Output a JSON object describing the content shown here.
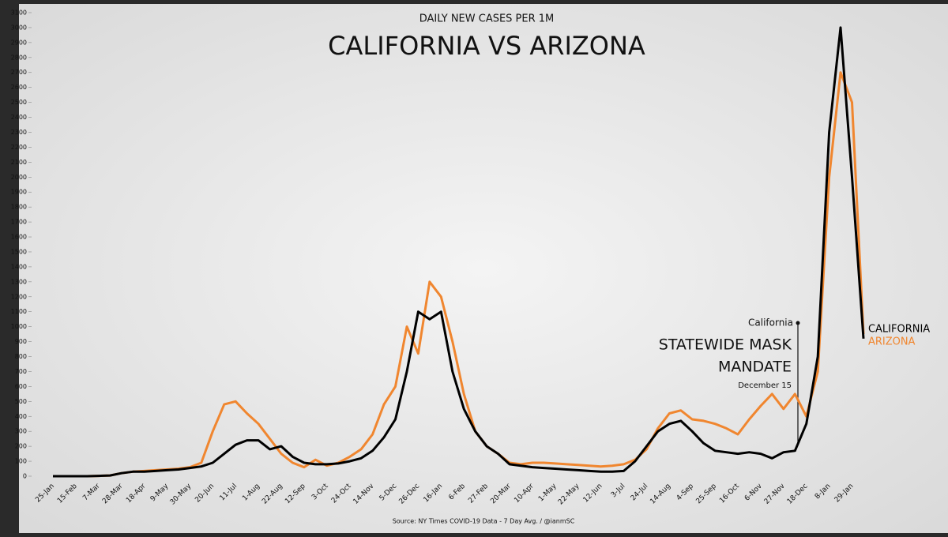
{
  "chart_data": {
    "type": "line",
    "subtitle": "DAILY NEW CASES PER 1M",
    "title": "CALIFORNIA VS ARIZONA",
    "source": "Source: NY Times COVID-19 Data - 7 Day Avg. / @ianmSC",
    "annotations": [
      "California",
      "STATEWIDE MASK",
      "MANDATE",
      "December 15"
    ],
    "categories": [
      "25-Jan",
      null,
      "15-Feb",
      null,
      "7-Mar",
      null,
      "28-Mar",
      null,
      "18-Apr",
      null,
      "9-May",
      null,
      "30-May",
      null,
      "20-Jun",
      null,
      "11-Jul",
      null,
      "1-Aug",
      null,
      "22-Aug",
      null,
      "12-Sep",
      null,
      "3-Oct",
      null,
      "24-Oct",
      null,
      "14-Nov",
      null,
      "5-Dec",
      null,
      "26-Dec",
      null,
      "16-Jan",
      null,
      "6-Feb",
      null,
      "27-Feb",
      null,
      "20-Mar",
      null,
      "10-Apr",
      null,
      "1-May",
      null,
      "22-May",
      null,
      "12-Jun",
      null,
      "3-Jul",
      null,
      "24-Jul",
      null,
      "14-Aug",
      null,
      "4-Sep",
      null,
      "25-Sep",
      null,
      "16-Oct",
      null,
      "6-Nov",
      null,
      "27-Nov",
      null,
      "18-Dec",
      null,
      "8-Jan",
      null,
      "29-Jan",
      null
    ],
    "series": [
      {
        "name": "CALIFORNIA",
        "color": "#000000",
        "values": [
          0,
          0,
          0,
          0,
          2,
          5,
          20,
          30,
          30,
          35,
          40,
          45,
          55,
          65,
          90,
          150,
          210,
          240,
          240,
          180,
          200,
          130,
          90,
          80,
          80,
          85,
          100,
          120,
          170,
          260,
          380,
          700,
          1100,
          1050,
          1100,
          700,
          450,
          300,
          200,
          150,
          80,
          70,
          60,
          55,
          50,
          45,
          40,
          35,
          30,
          30,
          35,
          100,
          200,
          300,
          350,
          370,
          300,
          220,
          170,
          160,
          150,
          160,
          150,
          120,
          160,
          170,
          350,
          800,
          2300,
          3000,
          2000,
          920
        ]
      },
      {
        "name": "ARIZONA",
        "color": "#f0862f",
        "values": [
          0,
          0,
          0,
          0,
          2,
          5,
          20,
          30,
          35,
          40,
          45,
          50,
          60,
          90,
          300,
          480,
          500,
          420,
          350,
          250,
          150,
          90,
          60,
          110,
          70,
          90,
          130,
          180,
          280,
          480,
          600,
          1000,
          820,
          1300,
          1200,
          900,
          550,
          300,
          200,
          150,
          90,
          80,
          90,
          90,
          85,
          80,
          75,
          70,
          65,
          70,
          80,
          110,
          180,
          320,
          420,
          440,
          380,
          370,
          350,
          320,
          280,
          380,
          470,
          550,
          450,
          550,
          400,
          700,
          2000,
          2700,
          2500,
          950
        ]
      }
    ],
    "ylim": [
      0,
      3100
    ],
    "yticks": [
      0,
      100,
      200,
      300,
      400,
      500,
      600,
      700,
      800,
      900,
      1000,
      1100,
      1200,
      1300,
      1400,
      1500,
      1600,
      1700,
      1800,
      1900,
      2000,
      2100,
      2200,
      2300,
      2400,
      2500,
      2600,
      2700,
      2800,
      2900,
      3000,
      3100
    ]
  }
}
